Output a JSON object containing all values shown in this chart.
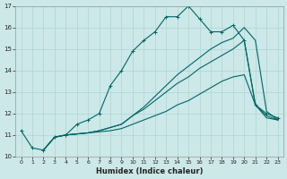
{
  "xlabel": "Humidex (Indice chaleur)",
  "bg_color": "#cce8e8",
  "grid_color": "#b0d4d4",
  "line_color": "#006666",
  "xlim": [
    -0.5,
    23.5
  ],
  "ylim": [
    10,
    17
  ],
  "yticks": [
    10,
    11,
    12,
    13,
    14,
    15,
    16,
    17
  ],
  "xticks": [
    0,
    1,
    2,
    3,
    4,
    5,
    6,
    7,
    8,
    9,
    10,
    11,
    12,
    13,
    14,
    15,
    16,
    17,
    18,
    19,
    20,
    21,
    22,
    23
  ],
  "series": [
    {
      "x": [
        0,
        1,
        2,
        3,
        4,
        5,
        6,
        7,
        8,
        9,
        10,
        11,
        12,
        13,
        14,
        15,
        16,
        17,
        18,
        19,
        20,
        21,
        22,
        23
      ],
      "y": [
        11.2,
        10.4,
        10.3,
        10.9,
        11.0,
        11.5,
        11.7,
        12.0,
        13.3,
        14.0,
        14.9,
        15.4,
        15.8,
        16.5,
        16.5,
        17.0,
        16.4,
        15.8,
        15.8,
        16.1,
        15.4,
        12.4,
        12.0,
        11.8
      ],
      "marker": "+"
    },
    {
      "x": [
        2,
        3,
        4,
        5,
        6,
        7,
        8,
        9,
        10,
        11,
        12,
        13,
        14,
        15,
        16,
        17,
        18,
        19,
        20,
        21,
        22,
        23
      ],
      "y": [
        10.3,
        10.9,
        11.0,
        11.05,
        11.1,
        11.15,
        11.2,
        11.3,
        11.5,
        11.7,
        11.9,
        12.1,
        12.4,
        12.6,
        12.9,
        13.2,
        13.5,
        13.7,
        13.8,
        12.4,
        11.8,
        11.7
      ],
      "marker": null
    },
    {
      "x": [
        2,
        3,
        4,
        5,
        6,
        7,
        8,
        9,
        10,
        11,
        12,
        13,
        14,
        15,
        16,
        17,
        18,
        19,
        20,
        21,
        22,
        23
      ],
      "y": [
        10.3,
        10.9,
        11.0,
        11.05,
        11.1,
        11.2,
        11.35,
        11.5,
        11.9,
        12.2,
        12.6,
        13.0,
        13.4,
        13.7,
        14.1,
        14.4,
        14.7,
        15.0,
        15.4,
        12.4,
        11.9,
        11.7
      ],
      "marker": null
    },
    {
      "x": [
        2,
        3,
        4,
        5,
        6,
        7,
        8,
        9,
        10,
        11,
        12,
        13,
        14,
        15,
        16,
        17,
        18,
        19,
        20,
        21,
        22,
        23
      ],
      "y": [
        10.3,
        10.9,
        11.0,
        11.05,
        11.1,
        11.2,
        11.35,
        11.5,
        11.9,
        12.3,
        12.8,
        13.3,
        13.8,
        14.2,
        14.6,
        15.0,
        15.3,
        15.5,
        16.0,
        15.4,
        12.1,
        11.7
      ],
      "marker": null
    }
  ]
}
